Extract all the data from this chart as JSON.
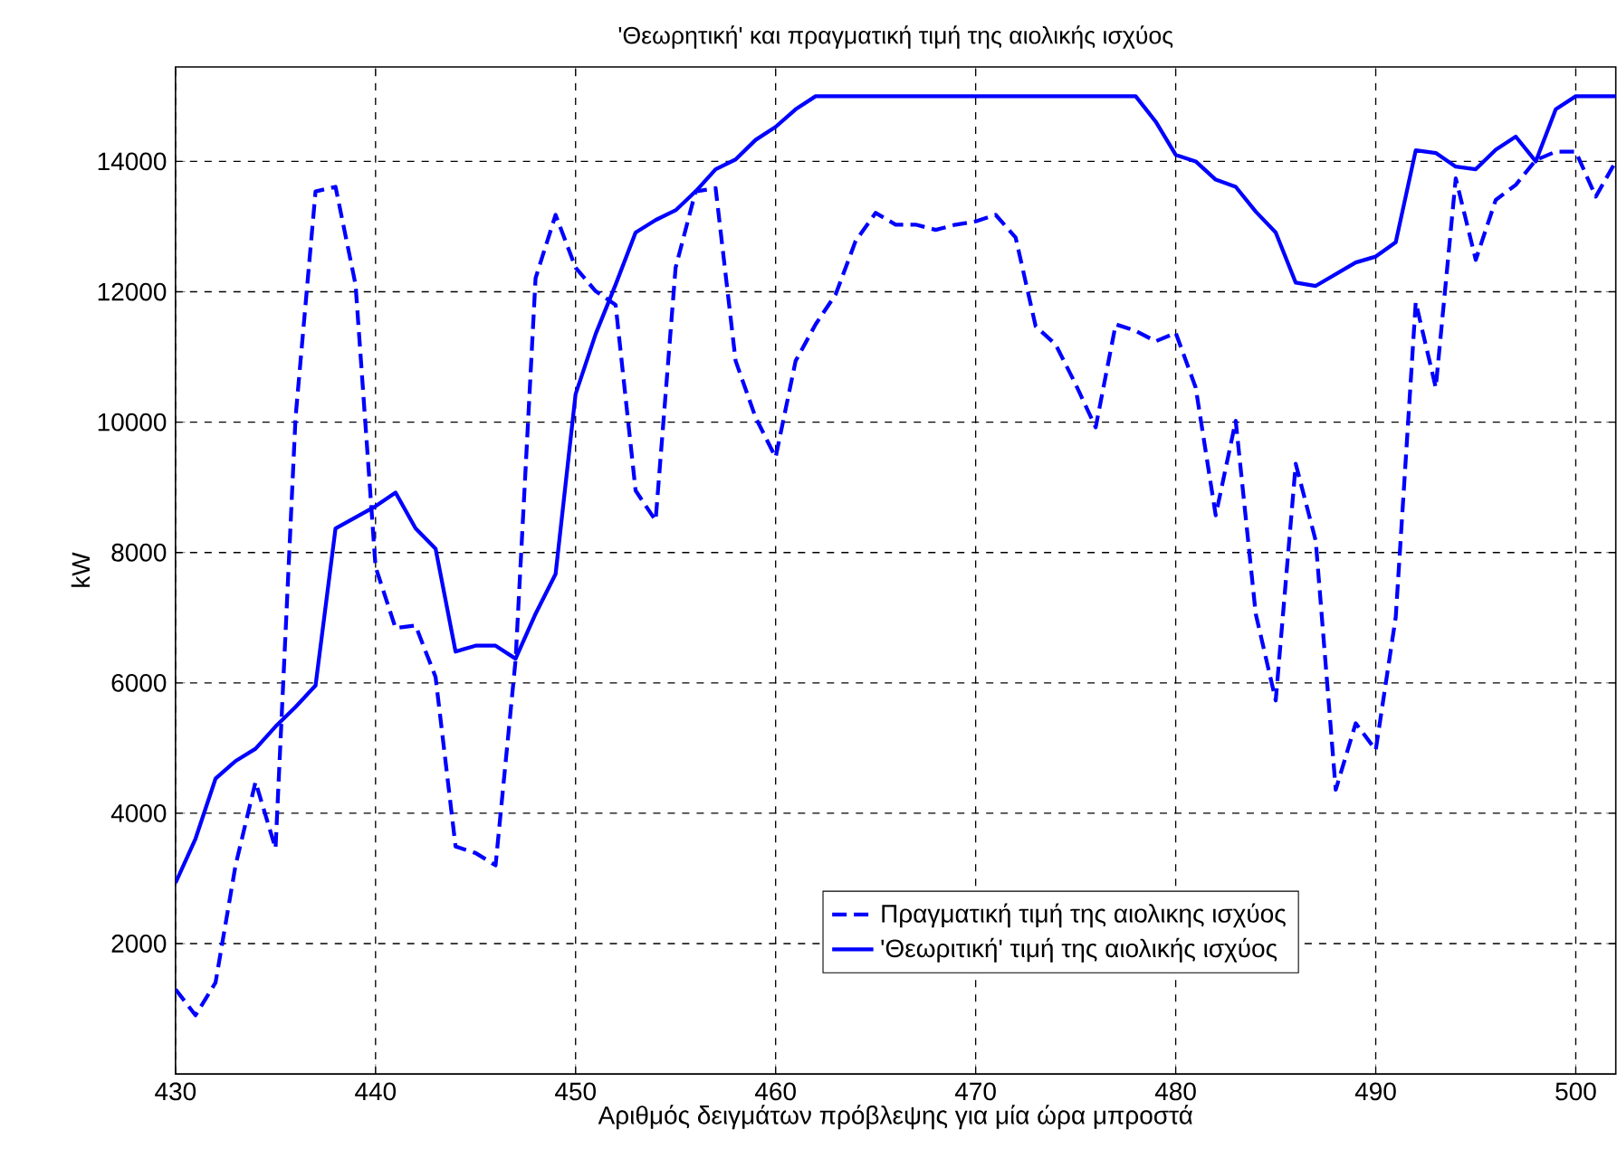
{
  "chart_data": {
    "type": "line",
    "title": "'Θεωρητική' και πραγματική τιμή της αιολικής ισχύος",
    "xlabel": "Αριθμός δειγμάτων πρόβλεψης για μία ώρα μπροστά",
    "ylabel": "kW",
    "x": [
      430,
      431,
      432,
      433,
      434,
      435,
      436,
      437,
      438,
      439,
      440,
      441,
      442,
      443,
      444,
      445,
      446,
      447,
      448,
      449,
      450,
      451,
      452,
      453,
      454,
      455,
      456,
      457,
      458,
      459,
      460,
      461,
      462,
      463,
      464,
      465,
      466,
      467,
      468,
      469,
      470,
      471,
      472,
      473,
      474,
      475,
      476,
      477,
      478,
      479,
      480,
      481,
      482,
      483,
      484,
      485,
      486,
      487,
      488,
      489,
      490,
      491,
      492,
      493,
      494,
      495,
      496,
      497,
      498,
      499,
      500,
      501,
      502
    ],
    "series": [
      {
        "name": "Πραγματική τιμή της αιολικης ισχύος",
        "color": "#0000ff",
        "line_style": "dashed",
        "values": [
          1300,
          900,
          1400,
          3200,
          4480,
          3460,
          10070,
          13540,
          13610,
          12110,
          7780,
          6840,
          6880,
          6090,
          3490,
          3390,
          3200,
          6350,
          12210,
          13180,
          12370,
          12010,
          11800,
          8950,
          8490,
          12370,
          13540,
          13590,
          10940,
          10070,
          9460,
          10940,
          11500,
          11960,
          12780,
          13210,
          13030,
          13030,
          12950,
          13030,
          13080,
          13180,
          12830,
          11470,
          11190,
          10580,
          9920,
          11500,
          11400,
          11240,
          11370,
          10530,
          8570,
          10020,
          7060,
          5730,
          9360,
          8180,
          4360,
          5380,
          4970,
          7010,
          11840,
          10530,
          13740,
          12490,
          13410,
          13640,
          14020,
          14150,
          14150,
          13460,
          14000
        ]
      },
      {
        "name": "'Θεωριτική' τιμή της αιολικής ισχύος",
        "color": "#0000ff",
        "line_style": "solid",
        "values": [
          2930,
          3610,
          4530,
          4800,
          4990,
          5330,
          5630,
          5960,
          8370,
          8540,
          8710,
          8920,
          8370,
          8060,
          6480,
          6570,
          6570,
          6370,
          7060,
          7670,
          10430,
          11350,
          12110,
          12910,
          13100,
          13250,
          13540,
          13880,
          14030,
          14330,
          14530,
          14800,
          15000,
          15000,
          15000,
          15000,
          15000,
          15000,
          15000,
          15000,
          15000,
          15000,
          15000,
          15000,
          15000,
          15000,
          15000,
          15000,
          15000,
          14610,
          14100,
          14000,
          13720,
          13610,
          13230,
          12910,
          12140,
          12090,
          12270,
          12450,
          12540,
          12760,
          14170,
          14130,
          13920,
          13880,
          14180,
          14380,
          14000,
          14800,
          15000,
          15000,
          15000
        ]
      }
    ],
    "xlim": [
      430,
      502
    ],
    "ylim": [
      0,
      15450
    ],
    "xticks": [
      430,
      440,
      450,
      460,
      470,
      480,
      490,
      500
    ],
    "yticks": [
      2000,
      4000,
      6000,
      8000,
      10000,
      12000,
      14000
    ],
    "grid": true,
    "legend": "bottom right",
    "marker": "none"
  }
}
